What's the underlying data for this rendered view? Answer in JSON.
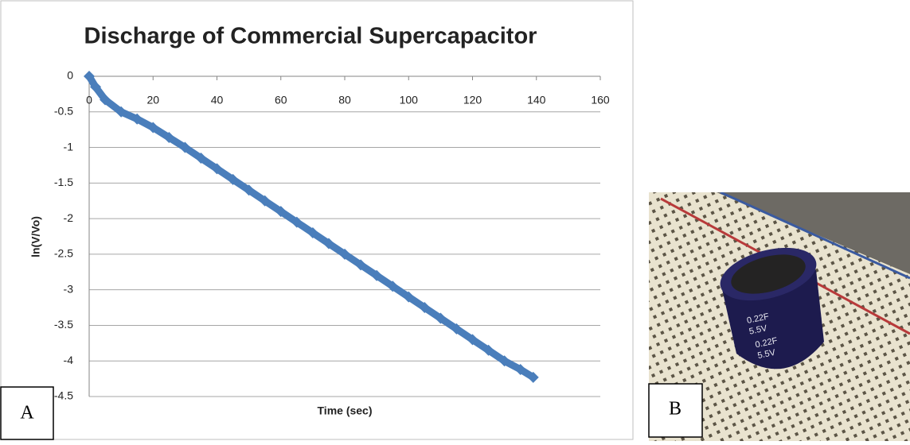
{
  "chart_data": {
    "type": "scatter",
    "title": "Discharge of Commercial Supercapacitor",
    "x_label": "Time (sec)",
    "y_label": "ln(V/Vo)",
    "x": [
      0,
      2,
      5,
      10,
      15,
      20,
      25,
      30,
      35,
      40,
      45,
      50,
      55,
      60,
      65,
      70,
      75,
      80,
      85,
      90,
      95,
      100,
      105,
      110,
      115,
      120,
      125,
      130,
      135,
      139
    ],
    "series": [
      {
        "color": "#4a7ebb",
        "values": [
          0,
          -0.15,
          -0.33,
          -0.5,
          -0.6,
          -0.72,
          -0.86,
          -1.0,
          -1.15,
          -1.3,
          -1.45,
          -1.6,
          -1.75,
          -1.9,
          -2.05,
          -2.2,
          -2.35,
          -2.5,
          -2.65,
          -2.8,
          -2.95,
          -3.1,
          -3.25,
          -3.4,
          -3.55,
          -3.7,
          -3.85,
          -4.0,
          -4.12,
          -4.23
        ]
      }
    ],
    "xlim": [
      0,
      160
    ],
    "xticks": [
      0,
      20,
      40,
      60,
      80,
      100,
      120,
      140,
      160
    ],
    "ylim": [
      -4.5,
      0
    ],
    "yticks": [
      0,
      -0.5,
      -1,
      -1.5,
      -2,
      -2.5,
      -3,
      -3.5,
      -4,
      -4.5
    ],
    "grid": true
  },
  "panels": {
    "a": "A",
    "b": "B"
  },
  "photo": {
    "labels": [
      "0.22F",
      "5.5V",
      "0.22F",
      "5.5V"
    ]
  }
}
